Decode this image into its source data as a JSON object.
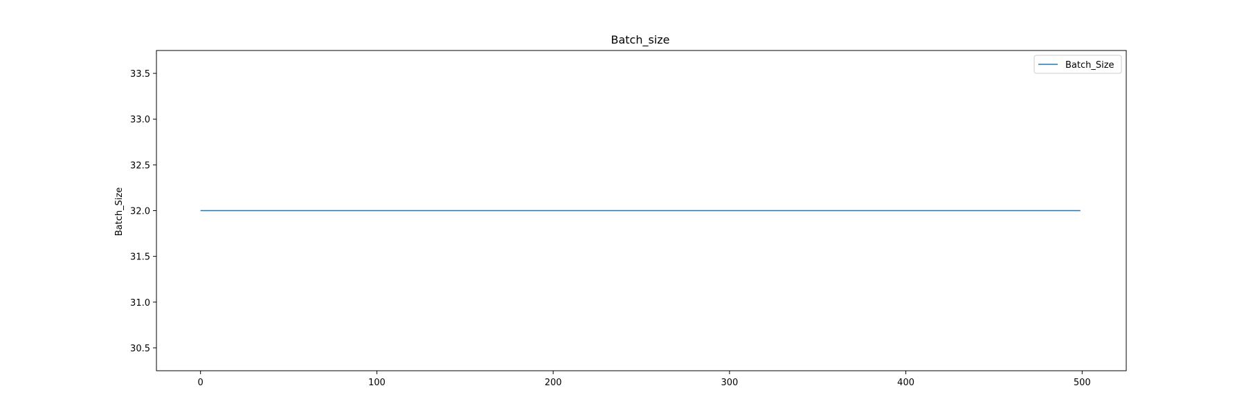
{
  "chart_data": {
    "type": "line",
    "title": "Batch_size",
    "xlabel": "",
    "ylabel": "Batch_Size",
    "xlim": [
      -25,
      525
    ],
    "ylim": [
      30.25,
      33.75
    ],
    "x_ticks": [
      0,
      100,
      200,
      300,
      400,
      500
    ],
    "x_tick_labels": [
      "0",
      "100",
      "200",
      "300",
      "400",
      "500"
    ],
    "y_ticks": [
      30.5,
      31.0,
      31.5,
      32.0,
      32.5,
      33.0,
      33.5
    ],
    "y_tick_labels": [
      "30.5",
      "31.0",
      "31.5",
      "32.0",
      "32.5",
      "33.0",
      "33.5"
    ],
    "grid": false,
    "legend_position": "top-right",
    "series": [
      {
        "name": "Batch_Size",
        "color": "#1f77b4",
        "x": [
          0,
          499
        ],
        "y": [
          32,
          32
        ]
      }
    ]
  }
}
